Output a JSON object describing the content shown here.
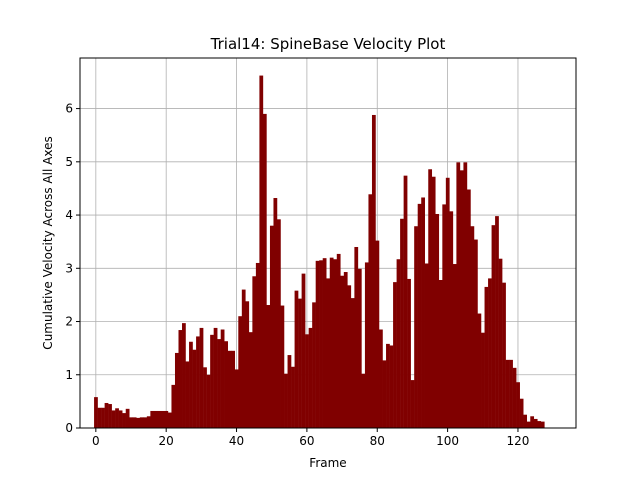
{
  "chart_data": {
    "type": "bar",
    "title": "Trial14: SpineBase Velocity Plot",
    "xlabel": "Frame",
    "ylabel": "Cumulative Velocity Across All Axes",
    "xlim": [
      -4.5,
      136.5
    ],
    "ylim": [
      0,
      6.95
    ],
    "xticks": [
      0,
      20,
      40,
      60,
      80,
      100,
      120
    ],
    "yticks": [
      0,
      1,
      2,
      3,
      4,
      5,
      6
    ],
    "grid": true,
    "bar_color": "#800000",
    "x": [
      0,
      1,
      2,
      3,
      4,
      5,
      6,
      7,
      8,
      9,
      10,
      11,
      12,
      13,
      14,
      15,
      16,
      17,
      18,
      19,
      20,
      21,
      22,
      23,
      24,
      25,
      26,
      27,
      28,
      29,
      30,
      31,
      32,
      33,
      34,
      35,
      36,
      37,
      38,
      39,
      40,
      41,
      42,
      43,
      44,
      45,
      46,
      47,
      48,
      49,
      50,
      51,
      52,
      53,
      54,
      55,
      56,
      57,
      58,
      59,
      60,
      61,
      62,
      63,
      64,
      65,
      66,
      67,
      68,
      69,
      70,
      71,
      72,
      73,
      74,
      75,
      76,
      77,
      78,
      79,
      80,
      81,
      82,
      83,
      84,
      85,
      86,
      87,
      88,
      89,
      90,
      91,
      92,
      93,
      94,
      95,
      96,
      97,
      98,
      99,
      100,
      101,
      102,
      103,
      104,
      105,
      106,
      107,
      108,
      109,
      110,
      111,
      112,
      113,
      114,
      115,
      116,
      117,
      118,
      119,
      120,
      121,
      122,
      123,
      124,
      125,
      126,
      127,
      128,
      129,
      130,
      131
    ],
    "values": [
      0.58,
      0.38,
      0.38,
      0.47,
      0.45,
      0.33,
      0.37,
      0.33,
      0.28,
      0.36,
      0.2,
      0.2,
      0.19,
      0.2,
      0.2,
      0.22,
      0.32,
      0.32,
      0.32,
      0.32,
      0.32,
      0.29,
      0.81,
      1.41,
      1.84,
      1.97,
      1.25,
      1.62,
      1.47,
      1.72,
      1.88,
      1.14,
      1.0,
      1.75,
      1.88,
      1.67,
      1.85,
      1.63,
      1.45,
      1.45,
      1.1,
      2.1,
      2.6,
      2.38,
      1.8,
      2.85,
      3.1,
      6.62,
      5.9,
      2.31,
      3.8,
      4.32,
      3.92,
      2.3,
      1.02,
      1.37,
      1.15,
      2.58,
      2.43,
      2.9,
      1.76,
      1.88,
      2.36,
      3.14,
      3.15,
      3.19,
      2.81,
      3.2,
      3.17,
      3.27,
      2.86,
      2.93,
      2.68,
      2.44,
      3.4,
      2.99,
      1.02,
      3.11,
      4.39,
      5.88,
      3.52,
      1.85,
      1.27,
      1.58,
      1.55,
      2.74,
      3.17,
      3.93,
      4.74,
      2.8,
      0.9,
      3.79,
      4.21,
      4.33,
      3.09,
      4.86,
      4.72,
      4.02,
      2.78,
      4.2,
      4.7,
      4.07,
      3.08,
      4.99,
      4.84,
      4.99,
      4.48,
      3.79,
      3.54,
      2.15,
      1.79,
      2.65,
      2.81,
      3.81,
      3.98,
      3.18,
      2.73,
      1.28,
      1.28,
      1.13,
      0.86,
      0.55,
      0.25,
      0.12,
      0.22,
      0.17,
      0.13,
      0.12,
      0,
      0,
      0,
      0
    ]
  }
}
